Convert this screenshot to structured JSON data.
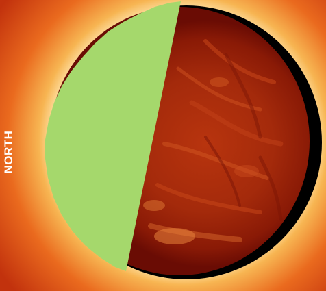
{
  "image": {
    "subject": "solar-disk-composite",
    "orientation_label": "NORTH",
    "colors": {
      "overlay_green": "#a5d86c",
      "corona_inner": "#fff1c8",
      "corona_mid": "#f39a3c",
      "corona_outer": "#c2320d",
      "disk_center": "#b8340e",
      "disk_edge": "#6a0c04",
      "occulter_ring": "#000000"
    }
  }
}
